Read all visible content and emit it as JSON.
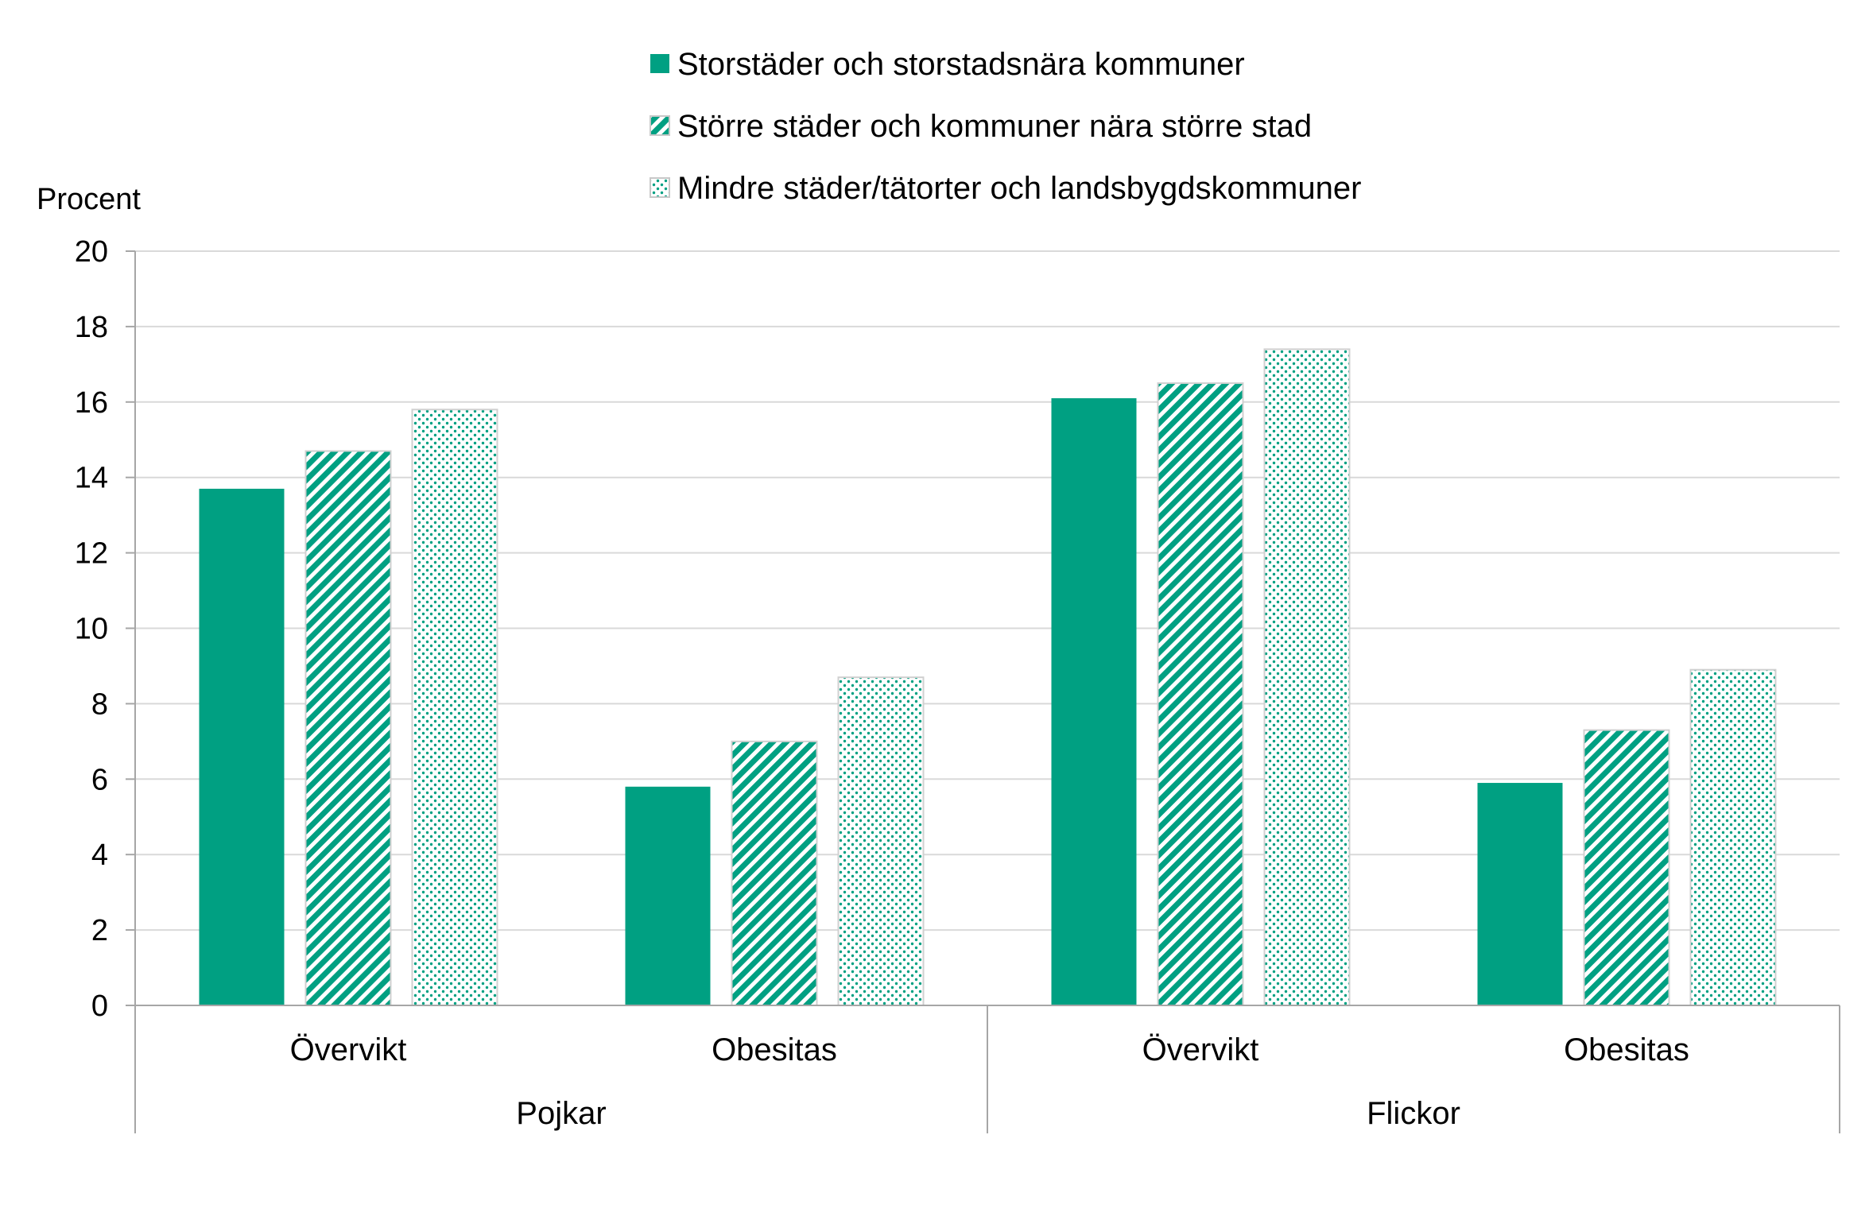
{
  "chart_data": {
    "type": "bar",
    "title": "",
    "ylabel": "Procent",
    "xlabel": "",
    "ylim": [
      0,
      20
    ],
    "yticks": [
      0,
      2,
      4,
      6,
      8,
      10,
      12,
      14,
      16,
      18,
      20
    ],
    "grid": true,
    "legend_position": "top",
    "groups": [
      {
        "label": "Pojkar",
        "categories": [
          "Övervikt",
          "Obesitas"
        ]
      },
      {
        "label": "Flickor",
        "categories": [
          "Övervikt",
          "Obesitas"
        ]
      }
    ],
    "categories": [
      "Övervikt",
      "Obesitas",
      "Övervikt",
      "Obesitas"
    ],
    "series": [
      {
        "name": "Storstäder och storstadsnära kommuner",
        "values": [
          13.7,
          5.8,
          16.1,
          5.9
        ],
        "color": "#00a082",
        "pattern": "solid"
      },
      {
        "name": "Större städer och kommuner nära större stad",
        "values": [
          14.7,
          7.0,
          16.5,
          7.3
        ],
        "color": "#00a082",
        "pattern": "diagonal-stripes"
      },
      {
        "name": "Mindre städer/tätorter och landsbygdskommuner",
        "values": [
          15.8,
          8.7,
          17.4,
          8.9
        ],
        "color": "#00a082",
        "pattern": "dots"
      }
    ]
  }
}
